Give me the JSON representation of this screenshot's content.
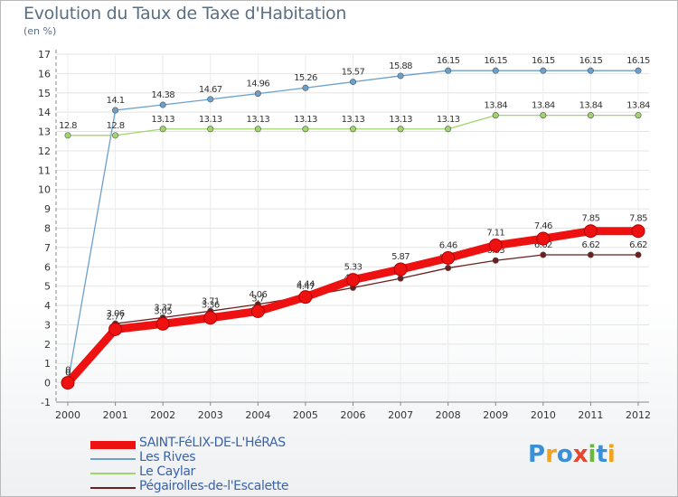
{
  "title": "Evolution du Taux de Taxe d'Habitation",
  "subtitle": "(en %)",
  "logo": {
    "text": "Proxiti",
    "colors": [
      "#3a8fd9",
      "#f2a31b",
      "#3a8fd9",
      "#e8452c",
      "#6bb83a",
      "#3a8fd9",
      "#f2a31b"
    ]
  },
  "chart_data": {
    "type": "line",
    "x": [
      "2000",
      "2001",
      "2002",
      "2003",
      "2004",
      "2005",
      "2006",
      "2007",
      "2008",
      "2009",
      "2010",
      "2011",
      "2012"
    ],
    "ylim": [
      -1,
      17
    ],
    "yticks": [
      "-1",
      "0",
      "1",
      "2",
      "3",
      "4",
      "5",
      "6",
      "7",
      "8",
      "9",
      "10",
      "11",
      "12",
      "13",
      "14",
      "15",
      "16",
      "17"
    ],
    "grid": true,
    "series": [
      {
        "name": "Pégairolles-de-l'Escalette",
        "color": "#6b1e1e",
        "thick": false,
        "values": [
          0,
          3.06,
          3.37,
          3.71,
          4.06,
          4.47,
          4.92,
          5.4,
          5.94,
          6.33,
          6.62,
          6.62,
          6.62
        ],
        "labels": [
          "0",
          "3.06",
          "3.37",
          "3.71",
          "4.06",
          "4.47",
          "4.92",
          "5.4",
          "5.94",
          "6.33",
          "6.62",
          "6.62",
          "6.62"
        ]
      },
      {
        "name": "Les Rives",
        "color": "#6ba0cc",
        "thick": false,
        "values": [
          0,
          14.1,
          14.38,
          14.67,
          14.96,
          15.26,
          15.57,
          15.88,
          16.15,
          16.15,
          16.15,
          16.15,
          16.15
        ],
        "labels": [
          "0",
          "14.1",
          "14.38",
          "14.67",
          "14.96",
          "15.26",
          "15.57",
          "15.88",
          "16.15",
          "16.15",
          "16.15",
          "16.15",
          "16.15"
        ]
      },
      {
        "name": "Le Caylar",
        "color": "#9fd66b",
        "thick": false,
        "values": [
          12.8,
          12.8,
          13.13,
          13.13,
          13.13,
          13.13,
          13.13,
          13.13,
          13.13,
          13.84,
          13.84,
          13.84,
          13.84
        ],
        "labels": [
          "12.8",
          "12.8",
          "13.13",
          "13.13",
          "13.13",
          "13.13",
          "13.13",
          "13.13",
          "13.13",
          "13.84",
          "13.84",
          "13.84",
          "13.84"
        ]
      },
      {
        "name": "SAINT-FéLIX-DE-L'HéRAS",
        "color": "#ee1111",
        "thick": true,
        "values": [
          0,
          2.77,
          3.05,
          3.36,
          3.7,
          4.44,
          5.33,
          5.87,
          6.46,
          7.11,
          7.46,
          7.85,
          7.85
        ],
        "labels": [
          "0",
          "2.77",
          "3.05",
          "3.36",
          "3.7",
          "4.44",
          "5.33",
          "5.87",
          "6.46",
          "7.11",
          "7.46",
          "7.85",
          "7.85"
        ]
      }
    ],
    "legend": [
      "SAINT-FéLIX-DE-L'HéRAS",
      "Les Rives",
      "Le Caylar",
      "Pégairolles-de-l'Escalette"
    ],
    "legend_position": "bottom-left"
  }
}
